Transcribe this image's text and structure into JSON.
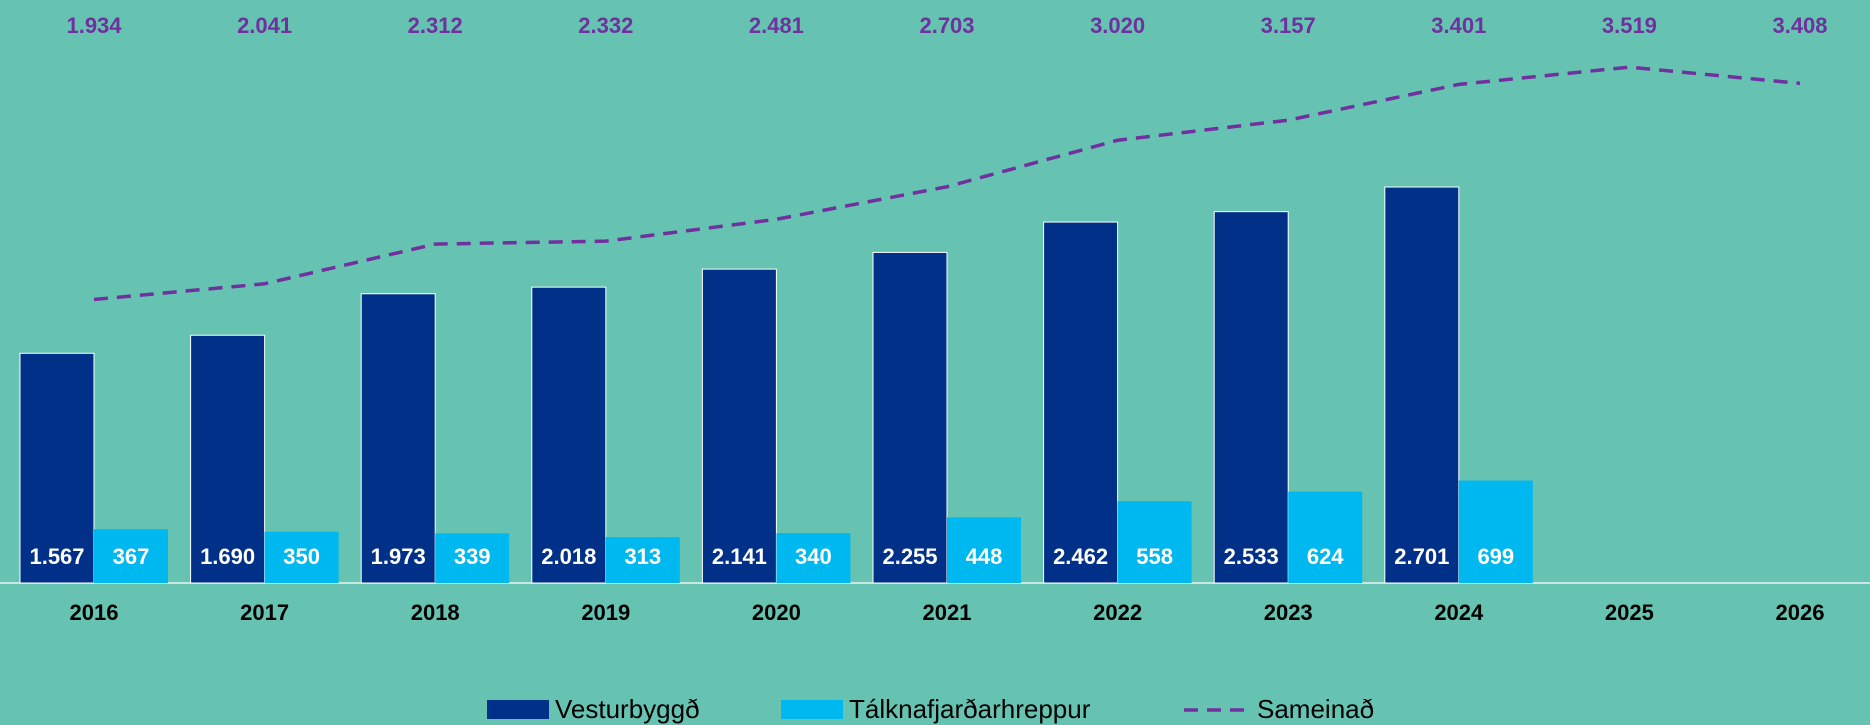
{
  "chart_data": {
    "type": "bar_line",
    "categories": [
      "2016",
      "2017",
      "2018",
      "2019",
      "2020",
      "2021",
      "2022",
      "2023",
      "2024",
      "2025",
      "2026"
    ],
    "background": "#67c3b1",
    "series": [
      {
        "name": "Vesturbyggð",
        "type": "bar",
        "color": "#003087",
        "values": [
          1567,
          1690,
          1973,
          2018,
          2141,
          2255,
          2462,
          2533,
          2701,
          null,
          null
        ],
        "value_labels": [
          "1.567",
          "1.690",
          "1.973",
          "2.018",
          "2.141",
          "2.255",
          "2.462",
          "2.533",
          "2.701",
          null,
          null
        ]
      },
      {
        "name": "Tálknafjarðarhreppur",
        "type": "bar",
        "color": "#00b8f0",
        "values": [
          367,
          350,
          339,
          313,
          340,
          448,
          558,
          624,
          699,
          null,
          null
        ],
        "value_labels": [
          "367",
          "350",
          "339",
          "313",
          "340",
          "448",
          "558",
          "624",
          "699",
          null,
          null
        ]
      },
      {
        "name": "Sameinað",
        "type": "line",
        "color": "#7030a0",
        "dashed": true,
        "values": [
          1934,
          2041,
          2312,
          2332,
          2481,
          2703,
          3020,
          3157,
          3401,
          3519,
          3408
        ],
        "value_labels": [
          "1.934",
          "2.041",
          "2.312",
          "2.332",
          "2.481",
          "2.703",
          "3.020",
          "3.157",
          "3.401",
          "3.519",
          "3.408"
        ]
      }
    ]
  }
}
